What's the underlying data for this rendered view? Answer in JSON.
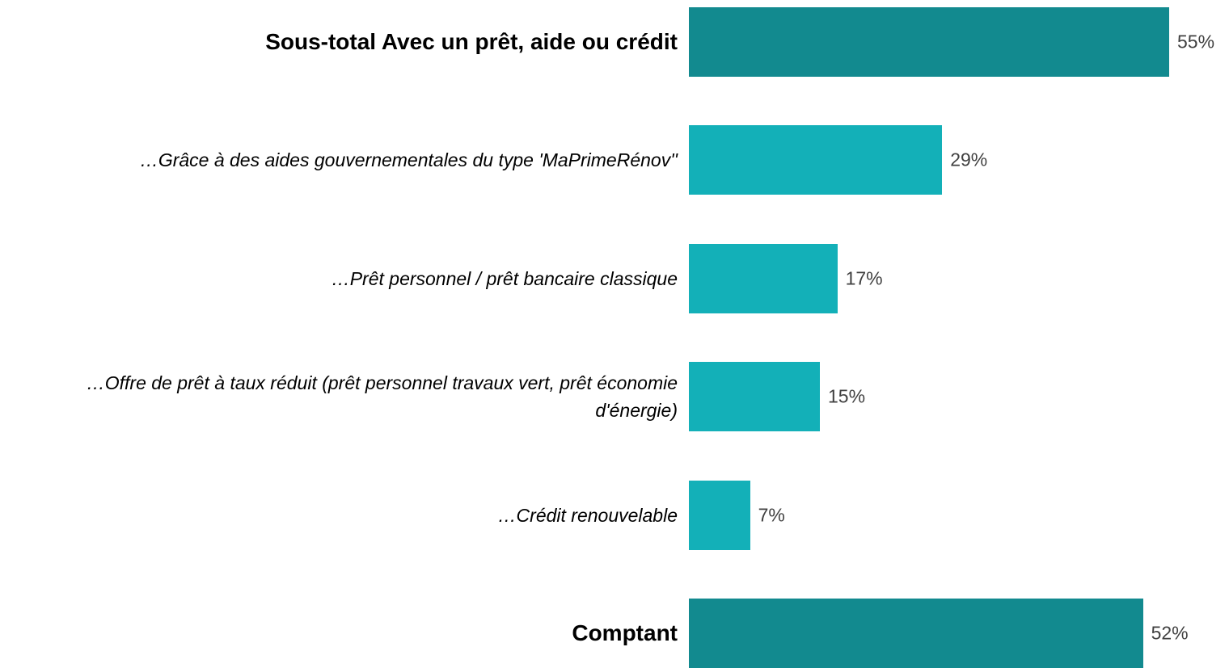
{
  "chart_data": {
    "type": "bar",
    "orientation": "horizontal",
    "categories": [
      "Sous-total Avec un prêt, aide ou crédit",
      "…Grâce à des aides gouvernementales du type 'MaPrimeRénov''",
      "…Prêt personnel / prêt bancaire classique",
      "…Offre de prêt à taux réduit (prêt personnel travaux vert, prêt économie d'énergie)",
      "…Crédit renouvelable",
      "Comptant"
    ],
    "values": [
      55,
      29,
      17,
      15,
      7,
      52
    ],
    "value_labels": [
      "55%",
      "29%",
      "17%",
      "15%",
      "7%",
      "52%"
    ],
    "colors": [
      "#128a8f",
      "#13b0b8",
      "#13b0b8",
      "#13b0b8",
      "#13b0b8",
      "#128a8f"
    ]
  }
}
